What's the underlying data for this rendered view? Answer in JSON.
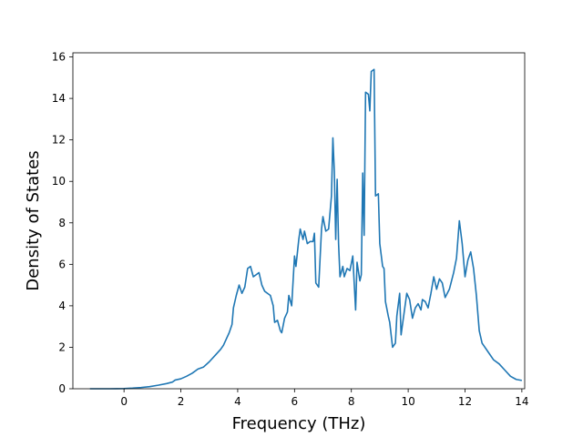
{
  "chart_data": {
    "type": "line",
    "title": "",
    "xlabel": "Frequency (THz)",
    "ylabel": "Density of States",
    "xlim": [
      -1.8,
      14.1
    ],
    "ylim": [
      0,
      16.2
    ],
    "xticks": [
      0,
      2,
      4,
      6,
      8,
      10,
      12,
      14
    ],
    "yticks": [
      0,
      2,
      4,
      6,
      8,
      10,
      12,
      14,
      16
    ],
    "grid": false,
    "legend": "none",
    "series": [
      {
        "color": "#1f77b4",
        "points": [
          [
            -1.2,
            0
          ],
          [
            -0.5,
            0
          ],
          [
            0,
            0.01
          ],
          [
            0.3,
            0.03
          ],
          [
            0.6,
            0.06
          ],
          [
            0.9,
            0.1
          ],
          [
            1.2,
            0.17
          ],
          [
            1.5,
            0.25
          ],
          [
            1.7,
            0.32
          ],
          [
            1.8,
            0.42
          ],
          [
            2.0,
            0.48
          ],
          [
            2.2,
            0.6
          ],
          [
            2.4,
            0.75
          ],
          [
            2.6,
            0.95
          ],
          [
            2.8,
            1.05
          ],
          [
            3.0,
            1.3
          ],
          [
            3.2,
            1.6
          ],
          [
            3.4,
            1.9
          ],
          [
            3.5,
            2.1
          ],
          [
            3.6,
            2.4
          ],
          [
            3.7,
            2.7
          ],
          [
            3.8,
            3.1
          ],
          [
            3.85,
            3.9
          ],
          [
            3.95,
            4.5
          ],
          [
            4.05,
            5.0
          ],
          [
            4.15,
            4.6
          ],
          [
            4.25,
            4.9
          ],
          [
            4.35,
            5.8
          ],
          [
            4.45,
            5.9
          ],
          [
            4.55,
            5.4
          ],
          [
            4.65,
            5.5
          ],
          [
            4.75,
            5.6
          ],
          [
            4.85,
            5.0
          ],
          [
            4.95,
            4.7
          ],
          [
            5.05,
            4.6
          ],
          [
            5.15,
            4.5
          ],
          [
            5.25,
            4.0
          ],
          [
            5.3,
            3.2
          ],
          [
            5.4,
            3.3
          ],
          [
            5.5,
            2.8
          ],
          [
            5.55,
            2.7
          ],
          [
            5.65,
            3.4
          ],
          [
            5.75,
            3.7
          ],
          [
            5.8,
            4.5
          ],
          [
            5.9,
            4.0
          ],
          [
            6.0,
            6.4
          ],
          [
            6.05,
            5.9
          ],
          [
            6.15,
            7.2
          ],
          [
            6.2,
            7.7
          ],
          [
            6.3,
            7.2
          ],
          [
            6.35,
            7.6
          ],
          [
            6.45,
            7.0
          ],
          [
            6.55,
            7.1
          ],
          [
            6.65,
            7.1
          ],
          [
            6.7,
            7.5
          ],
          [
            6.75,
            5.1
          ],
          [
            6.85,
            4.9
          ],
          [
            6.95,
            7.7
          ],
          [
            7.0,
            8.3
          ],
          [
            7.1,
            7.6
          ],
          [
            7.2,
            7.7
          ],
          [
            7.3,
            9.3
          ],
          [
            7.35,
            12.1
          ],
          [
            7.4,
            10.5
          ],
          [
            7.45,
            7.2
          ],
          [
            7.5,
            10.1
          ],
          [
            7.55,
            7.0
          ],
          [
            7.6,
            5.4
          ],
          [
            7.7,
            5.9
          ],
          [
            7.75,
            5.4
          ],
          [
            7.85,
            5.8
          ],
          [
            7.95,
            5.7
          ],
          [
            8.05,
            6.4
          ],
          [
            8.1,
            5.1
          ],
          [
            8.15,
            3.8
          ],
          [
            8.2,
            6.1
          ],
          [
            8.3,
            5.2
          ],
          [
            8.35,
            5.5
          ],
          [
            8.4,
            10.4
          ],
          [
            8.45,
            7.4
          ],
          [
            8.5,
            14.3
          ],
          [
            8.6,
            14.2
          ],
          [
            8.65,
            13.4
          ],
          [
            8.7,
            15.3
          ],
          [
            8.8,
            15.4
          ],
          [
            8.85,
            9.3
          ],
          [
            8.95,
            9.4
          ],
          [
            9.0,
            7.0
          ],
          [
            9.1,
            5.9
          ],
          [
            9.15,
            5.8
          ],
          [
            9.2,
            4.2
          ],
          [
            9.3,
            3.5
          ],
          [
            9.35,
            3.2
          ],
          [
            9.45,
            2.0
          ],
          [
            9.55,
            2.2
          ],
          [
            9.6,
            3.5
          ],
          [
            9.7,
            4.6
          ],
          [
            9.75,
            2.6
          ],
          [
            9.85,
            3.6
          ],
          [
            9.95,
            4.6
          ],
          [
            10.05,
            4.3
          ],
          [
            10.15,
            3.4
          ],
          [
            10.25,
            3.9
          ],
          [
            10.35,
            4.1
          ],
          [
            10.45,
            3.8
          ],
          [
            10.5,
            4.3
          ],
          [
            10.6,
            4.2
          ],
          [
            10.7,
            3.9
          ],
          [
            10.8,
            4.6
          ],
          [
            10.9,
            5.4
          ],
          [
            11.0,
            4.8
          ],
          [
            11.1,
            5.3
          ],
          [
            11.2,
            5.1
          ],
          [
            11.3,
            4.4
          ],
          [
            11.45,
            4.8
          ],
          [
            11.6,
            5.6
          ],
          [
            11.7,
            6.3
          ],
          [
            11.8,
            8.1
          ],
          [
            11.9,
            7.0
          ],
          [
            12.0,
            5.4
          ],
          [
            12.1,
            6.2
          ],
          [
            12.2,
            6.6
          ],
          [
            12.3,
            5.8
          ],
          [
            12.4,
            4.5
          ],
          [
            12.5,
            2.8
          ],
          [
            12.6,
            2.2
          ],
          [
            12.8,
            1.8
          ],
          [
            13.0,
            1.4
          ],
          [
            13.2,
            1.2
          ],
          [
            13.4,
            0.9
          ],
          [
            13.6,
            0.6
          ],
          [
            13.8,
            0.45
          ],
          [
            14.0,
            0.4
          ],
          [
            14.2,
            0.2
          ],
          [
            14.4,
            0.02
          ],
          [
            14.7,
            0
          ],
          [
            15.0,
            0
          ],
          [
            15.5,
            0
          ]
        ]
      }
    ]
  }
}
